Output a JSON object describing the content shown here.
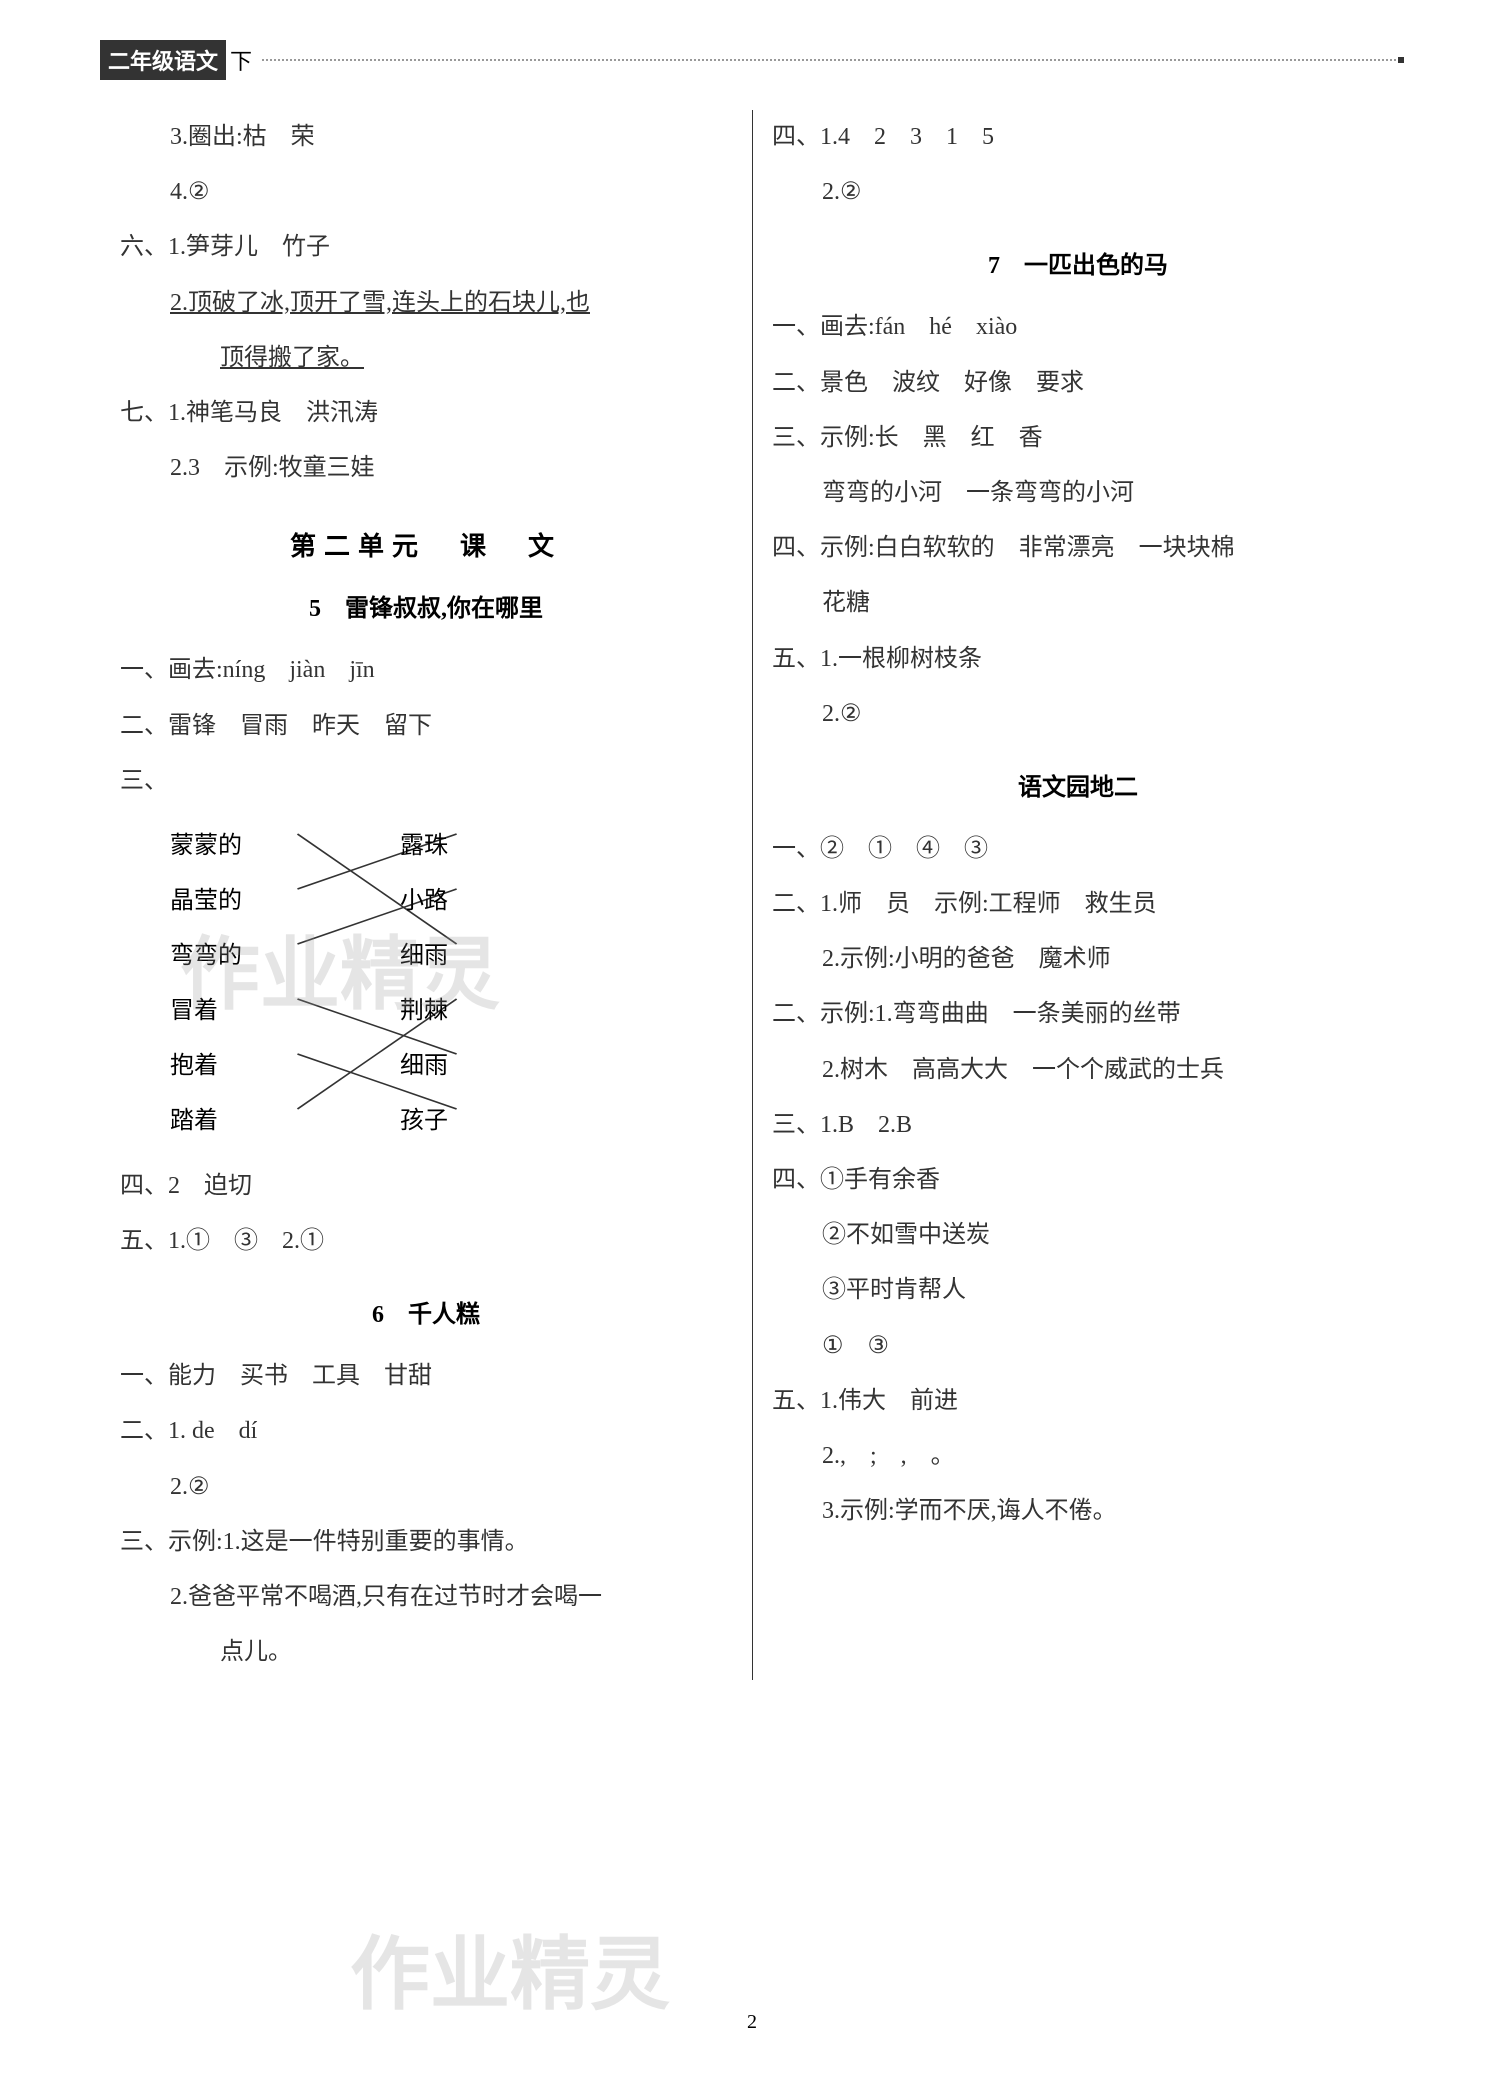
{
  "header": {
    "label": "二年级语文",
    "suffix": "下"
  },
  "left_column": {
    "lines": [
      {
        "text": "3.圈出:枯　荣",
        "indent": 1
      },
      {
        "text": "4.②",
        "indent": 1
      },
      {
        "text": "六、1.笋芽儿　竹子",
        "indent": 0
      },
      {
        "text": "2.顶破了冰,顶开了雪,连头上的石块儿,也",
        "indent": 1,
        "underline": true
      },
      {
        "text": "顶得搬了家。",
        "indent": 2,
        "underline": true
      },
      {
        "text": "七、1.神笔马良　洪汛涛",
        "indent": 0
      },
      {
        "text": "2.3　示例:牧童三娃",
        "indent": 1
      }
    ],
    "section_title": "第二单元　课　文",
    "sub_title1": "5　雷锋叔叔,你在哪里",
    "lines2": [
      {
        "text": "一、画去:níng　jiàn　jīn",
        "indent": 0
      },
      {
        "text": "二、雷锋　冒雨　昨天　留下",
        "indent": 0
      }
    ],
    "matching": {
      "label": "三、",
      "left_items": [
        "蒙蒙的",
        "晶莹的",
        "弯弯的",
        "冒着",
        "抱着",
        "踏着"
      ],
      "right_items": [
        "露珠",
        "小路",
        "细雨",
        "荆棘",
        "细雨",
        "孩子"
      ],
      "connections": [
        [
          0,
          2
        ],
        [
          1,
          0
        ],
        [
          2,
          1
        ],
        [
          3,
          4
        ],
        [
          4,
          5
        ],
        [
          5,
          3
        ]
      ]
    },
    "lines3": [
      {
        "text": "四、2　迫切",
        "indent": 0
      },
      {
        "text": "五、1.①　③　2.①",
        "indent": 0
      }
    ],
    "sub_title2": "6　千人糕",
    "lines4": [
      {
        "text": "一、能力　买书　工具　甘甜",
        "indent": 0
      },
      {
        "text": "二、1. de　dí",
        "indent": 0
      },
      {
        "text": "2.②",
        "indent": 1
      },
      {
        "text": "三、示例:1.这是一件特别重要的事情。",
        "indent": 0
      },
      {
        "text": "2.爸爸平常不喝酒,只有在过节时才会喝一",
        "indent": 1
      },
      {
        "text": "点儿。",
        "indent": 2
      }
    ]
  },
  "right_column": {
    "lines1": [
      {
        "text": "四、1.4　2　3　1　5",
        "indent": 0
      },
      {
        "text": "2.②",
        "indent": 1
      }
    ],
    "sub_title1": "7　一匹出色的马",
    "lines2": [
      {
        "text": "一、画去:fán　hé　xiào",
        "indent": 0
      },
      {
        "text": "二、景色　波纹　好像　要求",
        "indent": 0
      },
      {
        "text": "三、示例:长　黑　红　香",
        "indent": 0
      },
      {
        "text": "弯弯的小河　一条弯弯的小河",
        "indent": 1
      },
      {
        "text": "四、示例:白白软软的　非常漂亮　一块块棉",
        "indent": 0
      },
      {
        "text": "花糖",
        "indent": 1
      },
      {
        "text": "五、1.一根柳树枝条",
        "indent": 0
      },
      {
        "text": "2.②",
        "indent": 1
      }
    ],
    "sub_title2": "语文园地二",
    "lines3": [
      {
        "text": "一、②　①　④　③",
        "indent": 0
      },
      {
        "text": "二、1.师　员　示例:工程师　救生员",
        "indent": 0
      },
      {
        "text": "2.示例:小明的爸爸　魔术师",
        "indent": 1
      },
      {
        "text": "二、示例:1.弯弯曲曲　一条美丽的丝带",
        "indent": 0
      },
      {
        "text": "2.树木　高高大大　一个个威武的士兵",
        "indent": 1
      },
      {
        "text": "三、1.B　2.B",
        "indent": 0
      },
      {
        "text": "四、①手有余香",
        "indent": 0
      },
      {
        "text": "②不如雪中送炭",
        "indent": 1
      },
      {
        "text": "③平时肯帮人",
        "indent": 1
      },
      {
        "text": "①　③",
        "indent": 1
      },
      {
        "text": "五、1.伟大　前进",
        "indent": 0
      },
      {
        "text": "2.,　;　,　。",
        "indent": 1
      },
      {
        "text": "3.示例:学而不厌,诲人不倦。",
        "indent": 1
      }
    ]
  },
  "watermark": "作业精灵",
  "page_number": "2",
  "styling": {
    "page_bg": "#ffffff",
    "text_color": "#333333",
    "header_bg": "#333333",
    "header_text": "#ffffff",
    "body_fontsize": 24,
    "title_fontsize": 26,
    "line_height": 2.3,
    "watermark_color": "rgba(150,150,150,0.25)",
    "watermark_fontsize": 80
  }
}
